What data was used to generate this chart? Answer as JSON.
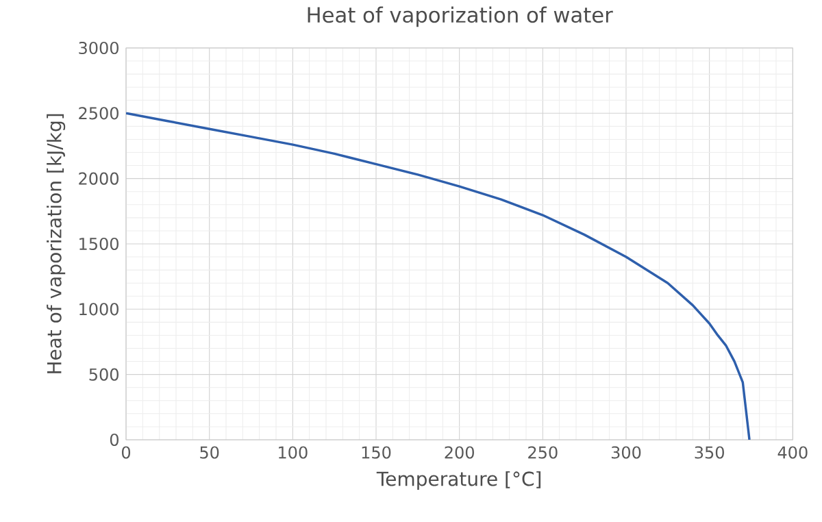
{
  "chart_data": {
    "type": "line",
    "title": "Heat of vaporization of water",
    "xlabel": "Temperature [°C]",
    "ylabel": "Heat of vaporization [kJ/kg]",
    "x": [
      0,
      25,
      50,
      75,
      100,
      125,
      150,
      175,
      200,
      225,
      250,
      275,
      300,
      325,
      340,
      350,
      355,
      360,
      365,
      370,
      374
    ],
    "series": [
      {
        "color": "#2e5fac",
        "values": [
          2500,
          2440,
          2380,
          2320,
          2260,
          2190,
          2110,
          2030,
          1940,
          1840,
          1720,
          1570,
          1400,
          1200,
          1030,
          890,
          800,
          720,
          600,
          440,
          0
        ]
      }
    ],
    "xlim": [
      0,
      400
    ],
    "xticks": [
      0,
      50,
      100,
      150,
      200,
      250,
      300,
      350,
      400
    ],
    "ylim": [
      0,
      3000
    ],
    "yticks": [
      0,
      500,
      1000,
      1500,
      2000,
      2500,
      3000
    ],
    "grid": true,
    "marker": "none",
    "line_style": "solid"
  }
}
